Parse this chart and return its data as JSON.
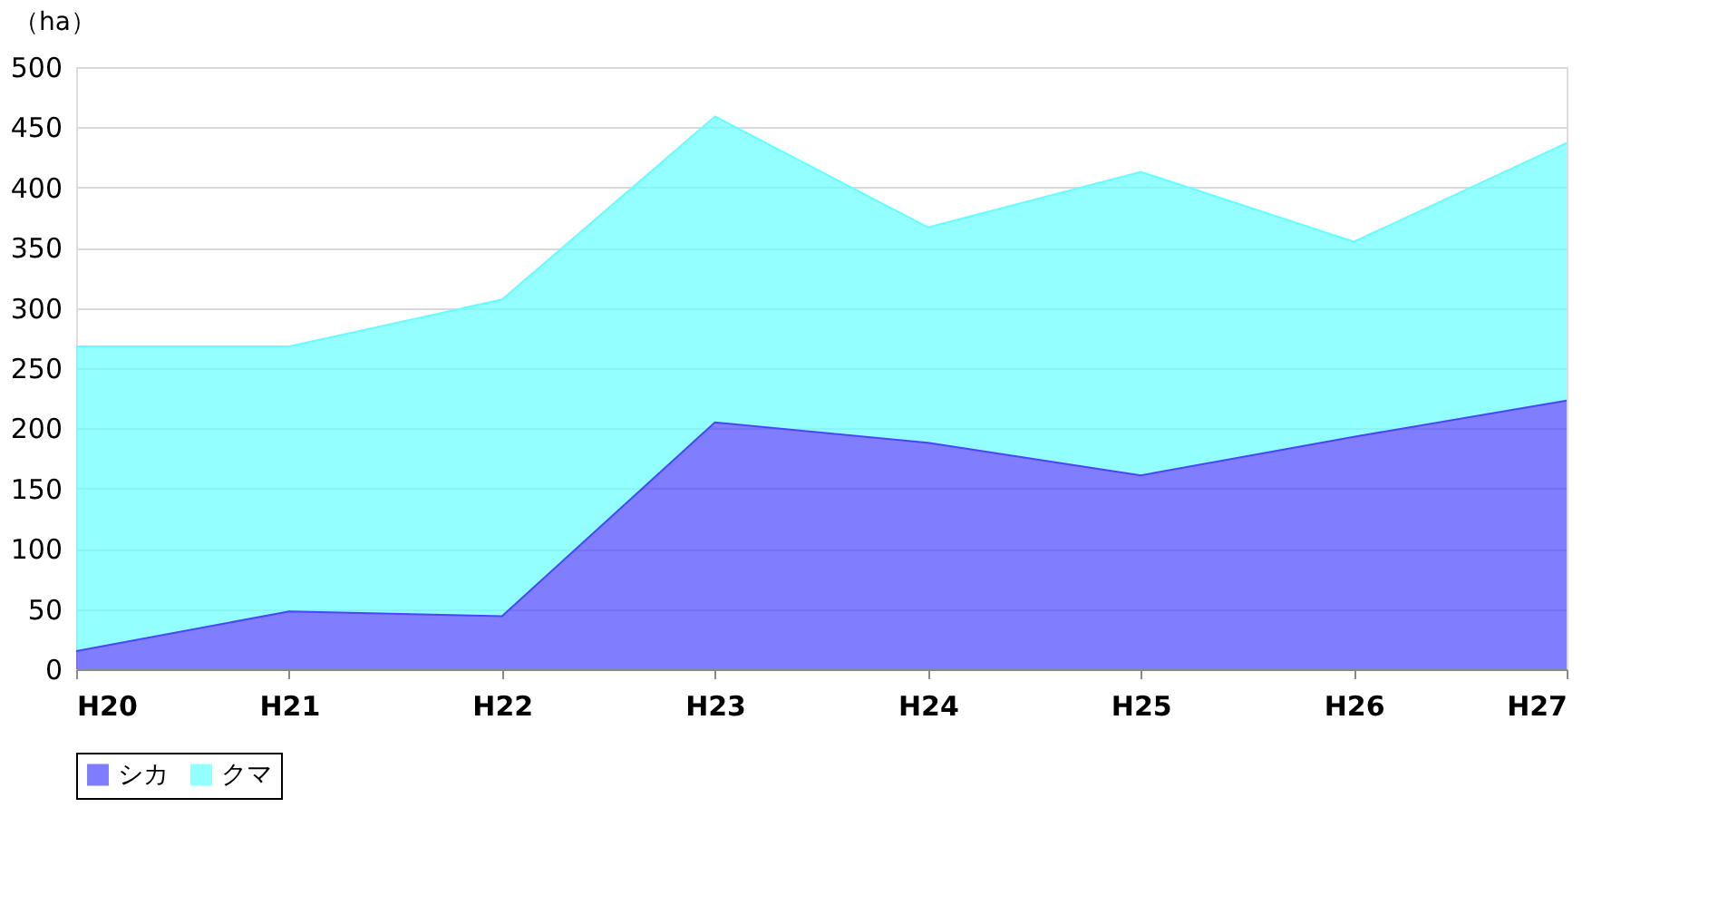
{
  "chart_data": {
    "type": "area",
    "stacked": true,
    "ylabel": "（ha）",
    "categories": [
      "H20",
      "H21",
      "H22",
      "H23",
      "H24",
      "H25",
      "H26",
      "H27"
    ],
    "series": [
      {
        "name": "シカ",
        "color": "#4a46ff",
        "values": [
          15,
          48,
          44,
          205,
          188,
          161,
          193,
          223
        ]
      },
      {
        "name": "クマ",
        "color": "#66ffff",
        "values": [
          253,
          220,
          263,
          254,
          179,
          252,
          162,
          214
        ]
      }
    ],
    "ylim": [
      0,
      500
    ],
    "yticks": [
      0,
      50,
      100,
      150,
      200,
      250,
      300,
      350,
      400,
      450,
      500
    ],
    "grid": "y",
    "legend": "bottom"
  }
}
